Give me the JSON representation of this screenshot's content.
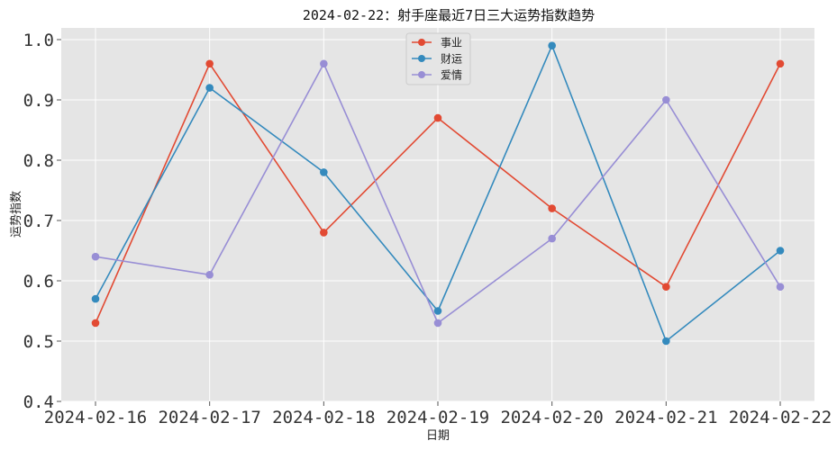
{
  "chart_data": {
    "type": "line",
    "title": "2024-02-22：射手座最近7日三大运势指数趋势",
    "xlabel": "日期",
    "ylabel": "运势指数",
    "categories": [
      "2024-02-16",
      "2024-02-17",
      "2024-02-18",
      "2024-02-19",
      "2024-02-20",
      "2024-02-21",
      "2024-02-22"
    ],
    "ylim": [
      0.4,
      1.0
    ],
    "yticks": [
      "0.4",
      "0.5",
      "0.6",
      "0.7",
      "0.8",
      "0.9",
      "1.0"
    ],
    "grid": true,
    "legend_position": "top-center",
    "series": [
      {
        "name": "事业",
        "color": "#E24A33",
        "values": [
          0.53,
          0.96,
          0.68,
          0.87,
          0.72,
          0.59,
          0.96
        ]
      },
      {
        "name": "财运",
        "color": "#348ABD",
        "values": [
          0.57,
          0.92,
          0.78,
          0.55,
          0.99,
          0.5,
          0.65
        ]
      },
      {
        "name": "爱情",
        "color": "#988ED5",
        "values": [
          0.64,
          0.61,
          0.96,
          0.53,
          0.67,
          0.9,
          0.59
        ]
      }
    ]
  }
}
